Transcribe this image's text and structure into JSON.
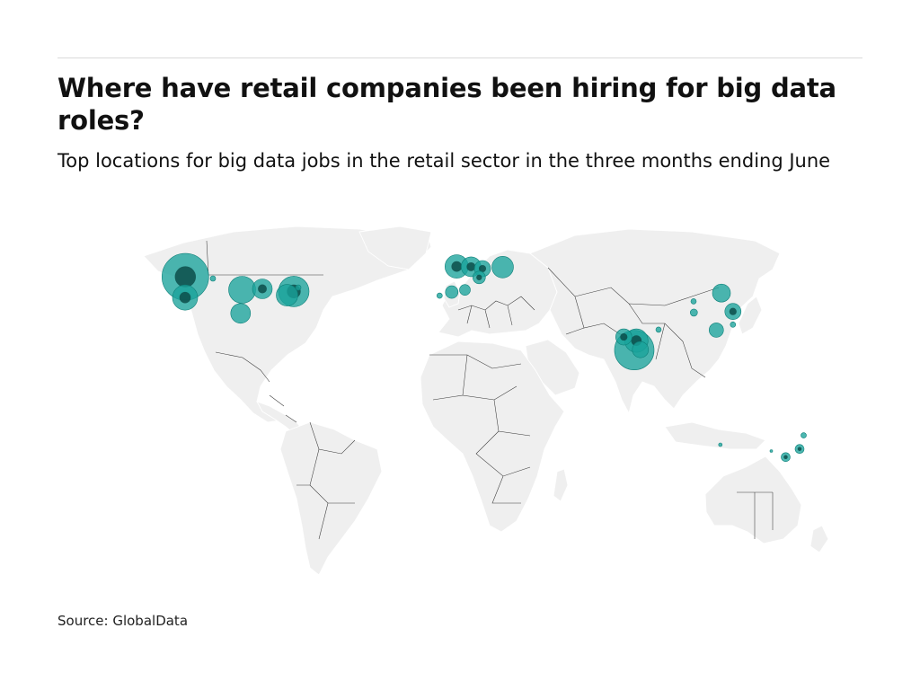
{
  "header": {
    "title": "Where have retail companies been hiring for big data roles?",
    "subtitle": "Top locations for big data jobs in the retail sector in the three months ending June"
  },
  "footer": {
    "source": "Source: GlobalData"
  },
  "map": {
    "type": "bubble-map",
    "basemap": "world",
    "land_color": "#efefef",
    "border_color": "#3a3a3a",
    "bubble_color": "#1aa39b",
    "bubble_dark_color": "#0c4d4a",
    "points": [
      {
        "region": "US West",
        "lon": -122.3,
        "lat": 47.6,
        "size": 26,
        "dark": true
      },
      {
        "region": "US West",
        "lon": -122.4,
        "lat": 37.8,
        "size": 14,
        "dark": true
      },
      {
        "region": "US Midwest",
        "lon": -97.0,
        "lat": 41.5,
        "size": 15
      },
      {
        "region": "US Midwest",
        "lon": -88.0,
        "lat": 41.9,
        "size": 11,
        "dark": true
      },
      {
        "region": "US Northeast",
        "lon": -74.0,
        "lat": 40.7,
        "size": 17,
        "dark": true
      },
      {
        "region": "US Northeast",
        "lon": -77.0,
        "lat": 38.9,
        "size": 12
      },
      {
        "region": "US South",
        "lon": -97.7,
        "lat": 30.3,
        "size": 11
      },
      {
        "region": "US Midwest",
        "lon": -110.0,
        "lat": 46.8,
        "size": 3
      },
      {
        "region": "US Northeast",
        "lon": -72.0,
        "lat": 42.5,
        "size": 3
      },
      {
        "region": "UK",
        "lon": -1.5,
        "lat": 52.5,
        "size": 13,
        "dark": true
      },
      {
        "region": "Benelux",
        "lon": 4.9,
        "lat": 52.4,
        "size": 11,
        "dark": true
      },
      {
        "region": "Germany",
        "lon": 10.0,
        "lat": 51.5,
        "size": 9,
        "dark": true
      },
      {
        "region": "Poland",
        "lon": 19.0,
        "lat": 52.2,
        "size": 12
      },
      {
        "region": "Switzerland",
        "lon": 8.5,
        "lat": 47.3,
        "size": 7,
        "dark": true
      },
      {
        "region": "Spain",
        "lon": -3.7,
        "lat": 40.4,
        "size": 7
      },
      {
        "region": "Spain",
        "lon": 2.2,
        "lat": 41.4,
        "size": 6
      },
      {
        "region": "Portugal",
        "lon": -9.1,
        "lat": 38.7,
        "size": 3
      },
      {
        "region": "India",
        "lon": 72.9,
        "lat": 19.1,
        "size": 9,
        "dark": true
      },
      {
        "region": "India",
        "lon": 77.6,
        "lat": 12.9,
        "size": 22
      },
      {
        "region": "India",
        "lon": 78.5,
        "lat": 17.4,
        "size": 13,
        "dark": true
      },
      {
        "region": "India",
        "lon": 80.3,
        "lat": 13.1,
        "size": 9
      },
      {
        "region": "India",
        "lon": 88.4,
        "lat": 22.6,
        "size": 3
      },
      {
        "region": "China",
        "lon": 116.4,
        "lat": 39.9,
        "size": 10
      },
      {
        "region": "China",
        "lon": 121.5,
        "lat": 31.2,
        "size": 9,
        "dark": true
      },
      {
        "region": "China",
        "lon": 114.1,
        "lat": 22.4,
        "size": 8
      },
      {
        "region": "China",
        "lon": 104.1,
        "lat": 30.7,
        "size": 4
      },
      {
        "region": "China",
        "lon": 104.0,
        "lat": 36.0,
        "size": 3
      },
      {
        "region": "Taiwan",
        "lon": 121.5,
        "lat": 25.0,
        "size": 3
      },
      {
        "region": "Australia",
        "lon": 151.2,
        "lat": -33.9,
        "size": 5,
        "dark": true
      },
      {
        "region": "Australia",
        "lon": 145.0,
        "lat": -37.8,
        "size": 5,
        "dark": true
      },
      {
        "region": "Australia",
        "lon": 153.0,
        "lat": -27.5,
        "size": 3
      },
      {
        "region": "Australia",
        "lon": 115.9,
        "lat": -31.9,
        "size": 2
      },
      {
        "region": "Australia",
        "lon": 138.6,
        "lat": -34.9,
        "size": 1.5
      }
    ]
  }
}
